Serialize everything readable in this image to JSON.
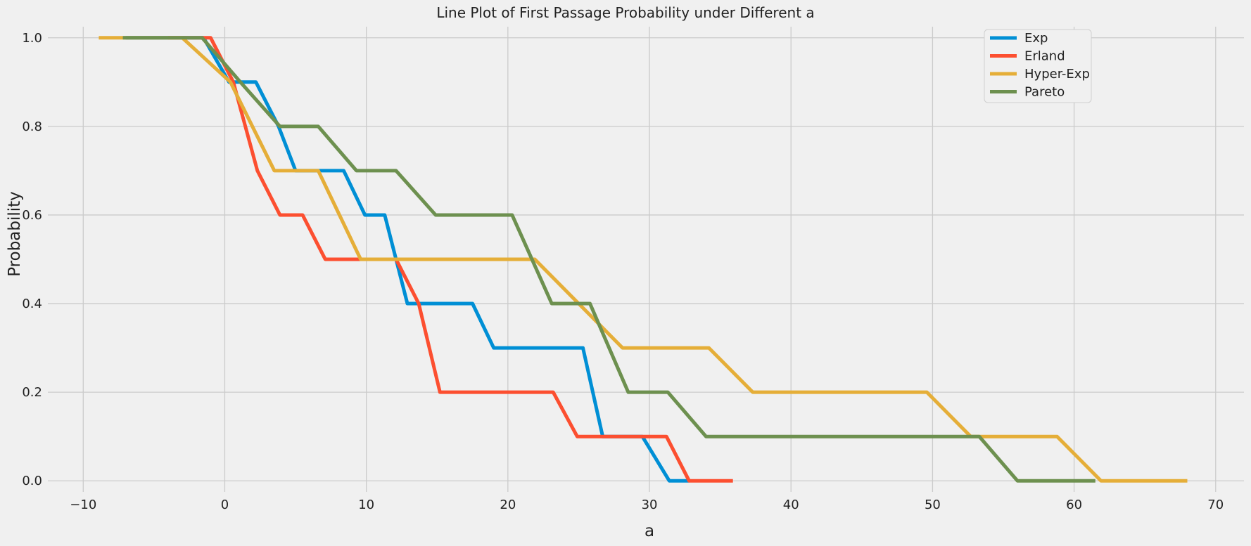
{
  "chart_data": {
    "type": "line",
    "title": "Line Plot of First Passage Probability under Different a",
    "xlabel": "a",
    "ylabel": "Probability",
    "xlim": [
      -12.5,
      72
    ],
    "ylim": [
      -0.025,
      1.025
    ],
    "xticks": [
      -10,
      0,
      10,
      20,
      30,
      40,
      50,
      60,
      70
    ],
    "yticks": [
      0.0,
      0.2,
      0.4,
      0.6,
      0.8,
      1.0
    ],
    "xtick_labels": [
      "−10",
      "0",
      "10",
      "20",
      "30",
      "40",
      "50",
      "60",
      "70"
    ],
    "ytick_labels": [
      "0.0",
      "0.2",
      "0.4",
      "0.6",
      "0.8",
      "1.0"
    ],
    "grid": true,
    "legend_position": "top-right",
    "series": [
      {
        "name": "Exp",
        "color": "#008fd5",
        "x": [
          -7,
          -1.5,
          0.3,
          1.3,
          2.2,
          3.8,
          5.0,
          6.6,
          8.4,
          9.9,
          11.3,
          12.9,
          14.8,
          17.5,
          19.0,
          21.0,
          23.0,
          25.3,
          26.7,
          29.5,
          31.4,
          32.8
        ],
        "y": [
          1.0,
          1.0,
          0.9,
          0.9,
          0.9,
          0.8,
          0.7,
          0.7,
          0.7,
          0.6,
          0.6,
          0.4,
          0.4,
          0.4,
          0.3,
          0.3,
          0.3,
          0.3,
          0.1,
          0.1,
          0.0,
          0.0
        ]
      },
      {
        "name": "Erland",
        "color": "#fc4f30",
        "x": [
          -4,
          -1,
          0.6,
          2.3,
          3.9,
          5.5,
          7.1,
          8.8,
          10.5,
          12.1,
          13.7,
          15.2,
          16.9,
          18.5,
          20.2,
          21.7,
          23.2,
          24.9,
          26.5,
          28.1,
          29.6,
          31.2,
          32.8,
          34.4,
          35.9
        ],
        "y": [
          1.0,
          1.0,
          0.9,
          0.7,
          0.6,
          0.6,
          0.5,
          0.5,
          0.5,
          0.5,
          0.4,
          0.2,
          0.2,
          0.2,
          0.2,
          0.2,
          0.2,
          0.1,
          0.1,
          0.1,
          0.1,
          0.1,
          0.0,
          0.0,
          0.0
        ]
      },
      {
        "name": "Hyper-Exp",
        "color": "#e5ae38",
        "x": [
          -8.9,
          -3,
          0.4,
          3.5,
          6.6,
          9.6,
          12.7,
          15.8,
          18.9,
          21.9,
          25.0,
          28.1,
          31.1,
          34.2,
          37.3,
          40.3,
          43.4,
          46.5,
          49.6,
          52.7,
          55.7,
          58.8,
          61.9,
          64.9,
          68.0
        ],
        "y": [
          1.0,
          1.0,
          0.9,
          0.7,
          0.7,
          0.5,
          0.5,
          0.5,
          0.5,
          0.5,
          0.4,
          0.3,
          0.3,
          0.3,
          0.2,
          0.2,
          0.2,
          0.2,
          0.2,
          0.1,
          0.1,
          0.1,
          0.0,
          0.0,
          0.0
        ]
      },
      {
        "name": "Pareto",
        "color": "#6d904f",
        "x": [
          -7.2,
          -1.6,
          1.1,
          3.9,
          6.6,
          9.3,
          12.1,
          14.9,
          17.6,
          20.3,
          23.1,
          25.8,
          28.5,
          31.3,
          34.0,
          36.8,
          39.5,
          42.2,
          45.0,
          47.7,
          50.5,
          53.3,
          56.0,
          58.7,
          61.5
        ],
        "y": [
          1.0,
          1.0,
          0.9,
          0.8,
          0.8,
          0.7,
          0.7,
          0.6,
          0.6,
          0.6,
          0.4,
          0.4,
          0.2,
          0.2,
          0.1,
          0.1,
          0.1,
          0.1,
          0.1,
          0.1,
          0.1,
          0.1,
          0.0,
          0.0,
          0.0
        ]
      }
    ]
  }
}
